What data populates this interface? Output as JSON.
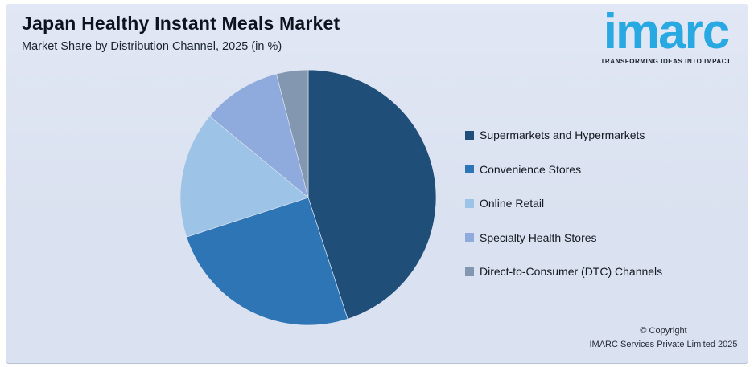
{
  "page": {
    "outer_background": "#FFFFFF",
    "card_background": "#DAE1F0"
  },
  "header": {
    "title": "Japan Healthy Instant Meals Market",
    "subtitle": "Market Share by Distribution Channel, 2025 (in %)"
  },
  "logo": {
    "wordmark": "imarc",
    "tagline": "TRANSFORMING IDEAS INTO IMPACT",
    "wordmark_color": "#29A9E1",
    "tagline_color": "#18222E"
  },
  "chart_data": {
    "type": "pie",
    "title": "Japan Healthy Instant Meals Market",
    "subtitle": "Market Share by Distribution Channel, 2025 (in %)",
    "year": "2025",
    "unit": "%",
    "categories": [
      "Supermarkets and Hypermarkets",
      "Convenience Stores",
      "Online Retail",
      "Specialty Health Stores",
      "Direct-to-Consumer (DTC) Channels"
    ],
    "values": [
      45,
      25,
      16,
      10,
      4
    ],
    "colors": [
      "#1F4E79",
      "#2E75B6",
      "#9DC3E6",
      "#8FAADC",
      "#8497B0"
    ],
    "start_angle_deg": 0,
    "direction": "clockwise",
    "legend_position": "right",
    "data_labels_shown": false
  },
  "footer": {
    "copyright_line1": "© Copyright",
    "copyright_line2": "IMARC Services Private Limited 2025"
  }
}
